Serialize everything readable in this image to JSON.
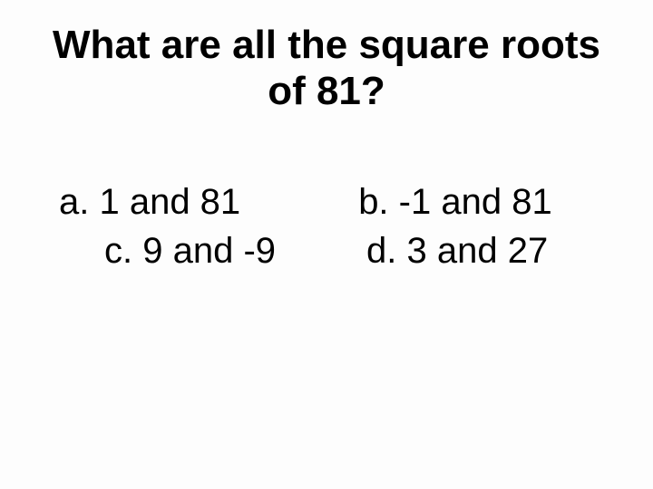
{
  "question": {
    "text": "What are all the square roots of 81?",
    "fontsize": 44,
    "font_weight": "bold",
    "text_align": "center",
    "color": "#000000"
  },
  "options": {
    "a": "a. 1 and 81",
    "b": "b. -1 and 81",
    "c": "c. 9 and -9",
    "d": "d. 3 and 27",
    "fontsize": 40,
    "color": "#000000"
  },
  "background_color": "#fdfdfd",
  "font_family": "Arial"
}
